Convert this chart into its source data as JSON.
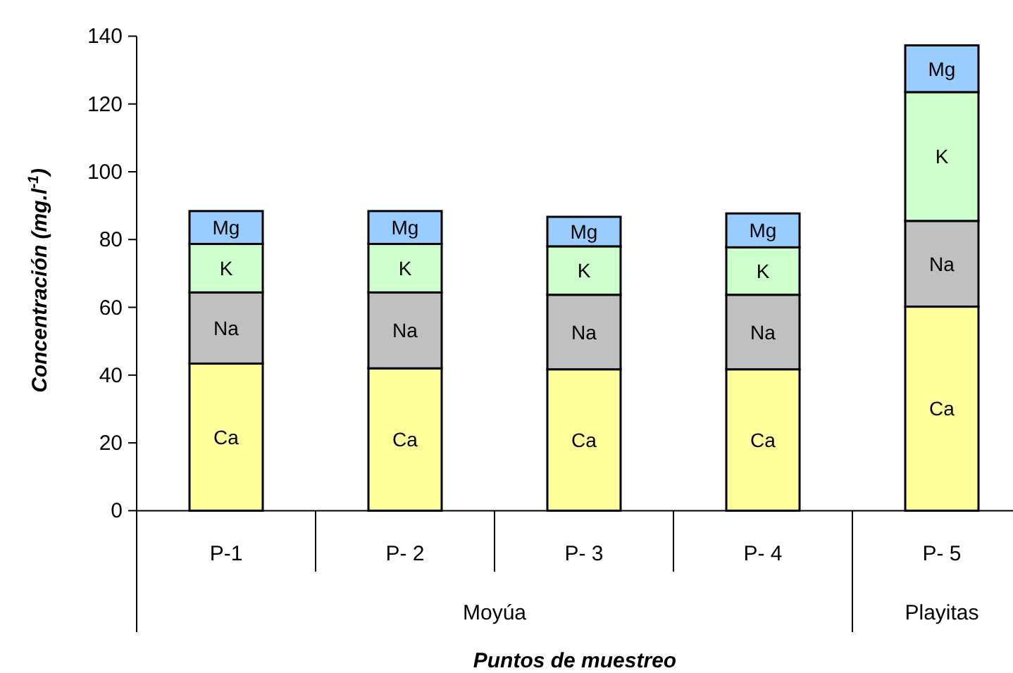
{
  "chart_data": {
    "type": "bar",
    "stacked": true,
    "xlabel": "Puntos de muestreo",
    "ylabel": "Concentración (mg.l$^{-1}$)",
    "categories": [
      "P-1",
      "P- 2",
      "P- 3",
      "P- 4",
      "P- 5"
    ],
    "series": [
      {
        "name": "Ca",
        "color": "#ffff99",
        "values": [
          43.4,
          42.0,
          41.7,
          41.7,
          60.2
        ]
      },
      {
        "name": "Na",
        "color": "#c0c0c0",
        "values": [
          21.0,
          22.4,
          22.0,
          22.0,
          25.3
        ]
      },
      {
        "name": "K",
        "color": "#ccffcc",
        "values": [
          14.3,
          14.3,
          14.3,
          14.0,
          38.0
        ]
      },
      {
        "name": "Mg",
        "color": "#99ccff",
        "values": [
          9.7,
          9.7,
          8.7,
          10.0,
          13.8
        ]
      }
    ],
    "ylim": [
      0,
      140
    ],
    "yticks": [
      0,
      20,
      40,
      60,
      80,
      100,
      120,
      140
    ],
    "annotations": [
      "Moyúa",
      "Playitas"
    ],
    "grid": false
  }
}
